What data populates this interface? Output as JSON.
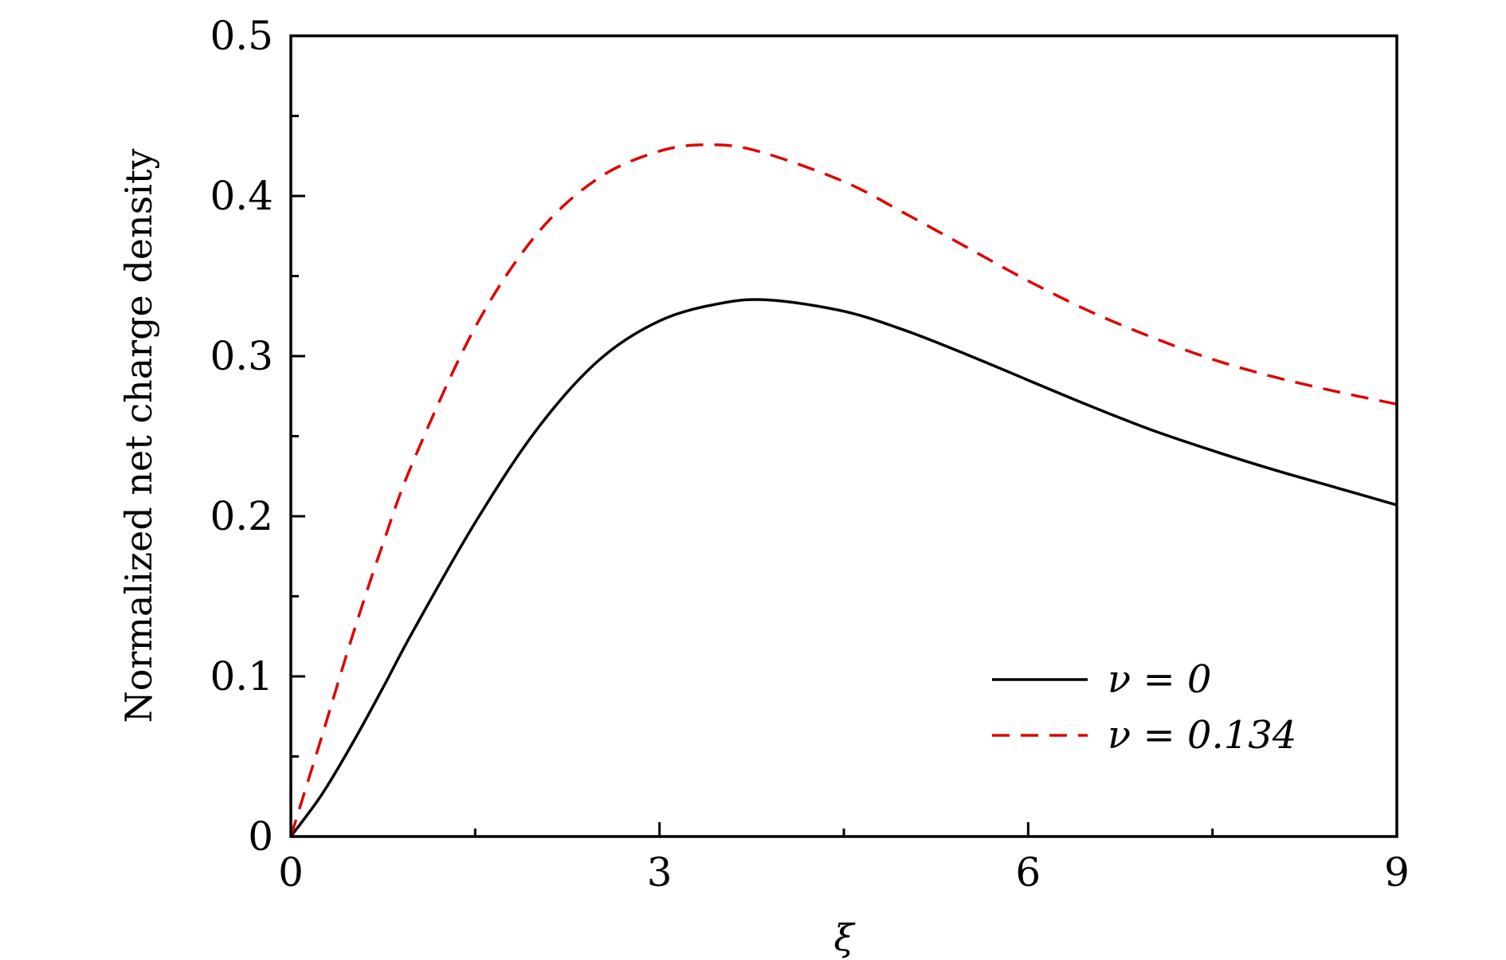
{
  "chart_data": {
    "type": "line",
    "title": "",
    "xlabel": "ξ",
    "ylabel": "Normalized net charge density",
    "xlim": [
      0,
      9
    ],
    "ylim": [
      0,
      0.5
    ],
    "xticks": [
      0,
      3,
      6,
      9
    ],
    "xtick_labels": [
      "0",
      "3",
      "6",
      "9"
    ],
    "yticks": [
      0,
      0.1,
      0.2,
      0.3,
      0.4,
      0.5
    ],
    "ytick_labels": [
      "0",
      "0.1",
      "0.2",
      "0.3",
      "0.4",
      "0.5"
    ],
    "grid": false,
    "legend_position": "bottom-right",
    "series": [
      {
        "name": "ν = 0",
        "style": "solid",
        "color": "#000000",
        "x": [
          0,
          0.25,
          0.5,
          0.75,
          1.0,
          1.5,
          2.0,
          2.5,
          3.0,
          3.5,
          3.9,
          4.5,
          5.0,
          5.5,
          6.0,
          6.5,
          7.0,
          7.5,
          8.0,
          8.5,
          9.0
        ],
        "y": [
          0,
          0.026,
          0.058,
          0.093,
          0.129,
          0.196,
          0.254,
          0.297,
          0.322,
          0.333,
          0.335,
          0.328,
          0.316,
          0.301,
          0.285,
          0.269,
          0.254,
          0.241,
          0.229,
          0.218,
          0.207
        ]
      },
      {
        "name": "ν = 0.134",
        "style": "dashed",
        "color": "#e00000",
        "x": [
          0,
          0.25,
          0.5,
          0.75,
          1.0,
          1.5,
          2.0,
          2.5,
          3.0,
          3.4,
          3.8,
          4.5,
          5.0,
          5.5,
          6.0,
          6.5,
          7.0,
          7.5,
          8.0,
          8.5,
          9.0
        ],
        "y": [
          0,
          0.062,
          0.125,
          0.183,
          0.235,
          0.318,
          0.376,
          0.411,
          0.428,
          0.432,
          0.428,
          0.409,
          0.389,
          0.368,
          0.347,
          0.328,
          0.312,
          0.298,
          0.287,
          0.278,
          0.27
        ]
      }
    ]
  }
}
